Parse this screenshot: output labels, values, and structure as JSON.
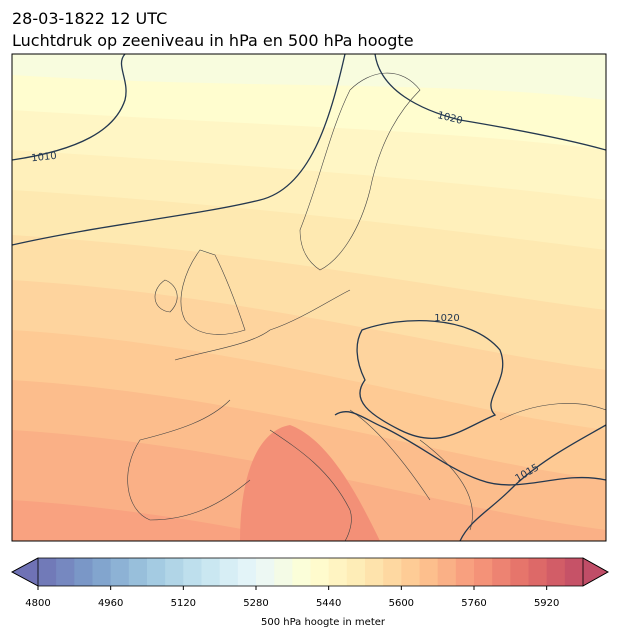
{
  "header": {
    "date": "28-03-1822 12 UTC",
    "title": "Luchtdruk op zeeniveau in hPa en 500 hPa hoogte"
  },
  "map": {
    "contour_labels": [
      1010,
      1020,
      1020,
      1015
    ]
  },
  "colorbar": {
    "range": [
      4800,
      6000
    ],
    "ticks": [
      4800,
      4960,
      5120,
      5280,
      5440,
      5600,
      5760,
      5920
    ],
    "label": "500 hPa hoogte in meter"
  }
}
